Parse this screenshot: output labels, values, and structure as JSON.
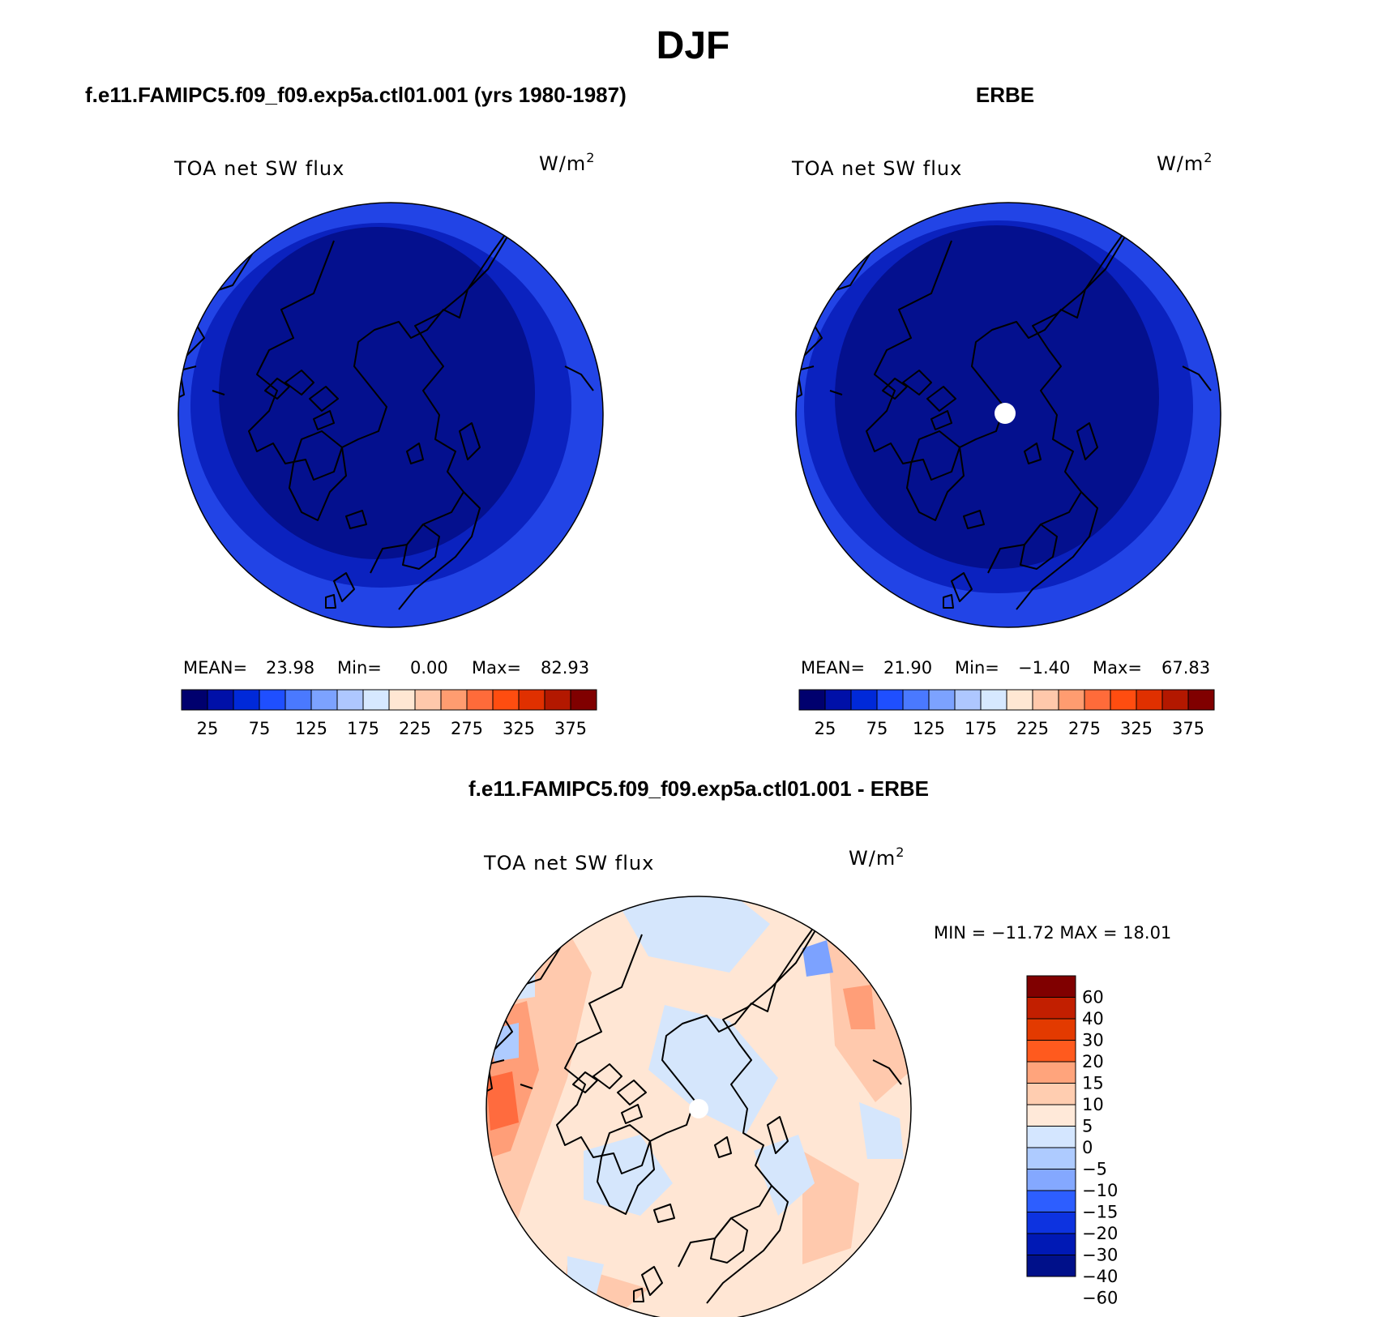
{
  "page_title": "DJF",
  "panels": {
    "model": {
      "title": "f.e11.FAMIPC5.f09_f09.exp5a.ctl01.001 (yrs 1980-1987)",
      "variable": "TOA net SW flux",
      "units_base": "W/m",
      "units_exp": "2",
      "stats": {
        "mean_label": "MEAN=",
        "mean": "23.98",
        "min_label": "Min=",
        "min": "0.00",
        "max_label": "Max=",
        "max": "82.93"
      }
    },
    "obs": {
      "title": "ERBE",
      "variable": "TOA net SW flux",
      "units_base": "W/m",
      "units_exp": "2",
      "stats": {
        "mean_label": "MEAN=",
        "mean": "21.90",
        "min_label": "Min=",
        "min": "−1.40",
        "max_label": "Max=",
        "max": "67.83"
      }
    },
    "diff": {
      "title": "f.e11.FAMIPC5.f09_f09.exp5a.ctl01.001 - ERBE",
      "variable": "TOA net SW flux",
      "units_base": "W/m",
      "units_exp": "2",
      "minmax": "MIN = −11.72 MAX =   18.01"
    }
  },
  "colorbar_abs": {
    "colors": [
      "#00006e",
      "#0010a8",
      "#0029d9",
      "#1f4fff",
      "#4a79ff",
      "#7ca2ff",
      "#aec7ff",
      "#d6e8ff",
      "#ffe7d3",
      "#ffc8ab",
      "#ff9c70",
      "#ff6b3a",
      "#ff4d10",
      "#e03000",
      "#b31800",
      "#800000"
    ],
    "ticks": [
      "25",
      "75",
      "125",
      "175",
      "225",
      "275",
      "325",
      "375"
    ]
  },
  "colorbar_diff": {
    "colors": [
      "#800000",
      "#c21f00",
      "#e33a00",
      "#ff5a1e",
      "#ffa47c",
      "#ffcdb0",
      "#ffe9d9",
      "#d4e6ff",
      "#aecbff",
      "#84a8ff",
      "#2d5eff",
      "#0d33e0",
      "#0019b5",
      "#00108a"
    ],
    "ticks": [
      "60",
      "40",
      "30",
      "20",
      "15",
      "10",
      "5",
      "0",
      "−5",
      "−10",
      "−15",
      "−20",
      "−30",
      "−40",
      "−60"
    ]
  },
  "map_colors": {
    "abs_ring_outer": "#2244e6",
    "abs_ring_mid": "#0b22bf",
    "abs_core": "#04108e",
    "diff_base": "#ffe6d4",
    "diff_warm": "#ffc9ad",
    "diff_warmer": "#ff9e78",
    "diff_hot": "#ff6b3e",
    "diff_cool": "#d5e6fc",
    "diff_cooler": "#aecbff",
    "diff_cold": "#7ca2ff"
  }
}
